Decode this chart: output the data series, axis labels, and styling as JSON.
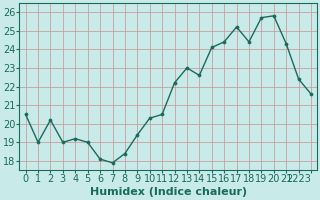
{
  "x": [
    0,
    1,
    2,
    3,
    4,
    5,
    6,
    7,
    8,
    9,
    10,
    11,
    12,
    13,
    14,
    15,
    16,
    17,
    18,
    19,
    20,
    21,
    22,
    23
  ],
  "y": [
    20.5,
    19.0,
    20.2,
    19.0,
    19.2,
    19.0,
    18.1,
    17.9,
    18.4,
    19.4,
    20.3,
    20.5,
    22.2,
    23.0,
    22.6,
    24.1,
    24.4,
    25.2,
    24.4,
    25.7,
    25.8,
    24.3,
    22.4,
    21.6
  ],
  "xlabel": "Humidex (Indice chaleur)",
  "ylim": [
    17.5,
    26.5
  ],
  "xlim": [
    -0.5,
    23.5
  ],
  "yticks": [
    18,
    19,
    20,
    21,
    22,
    23,
    24,
    25,
    26
  ],
  "xticks": [
    0,
    1,
    2,
    3,
    4,
    5,
    6,
    7,
    8,
    9,
    10,
    11,
    12,
    13,
    14,
    15,
    16,
    17,
    18,
    19,
    20,
    21,
    22,
    23
  ],
  "line_color": "#1a6b5e",
  "marker_color": "#1a6b5e",
  "bg_color": "#c8eae8",
  "grid_color": "#c8a0a0",
  "xlabel_fontsize": 8,
  "tick_fontsize": 7,
  "label_color": "#1a6b5e"
}
